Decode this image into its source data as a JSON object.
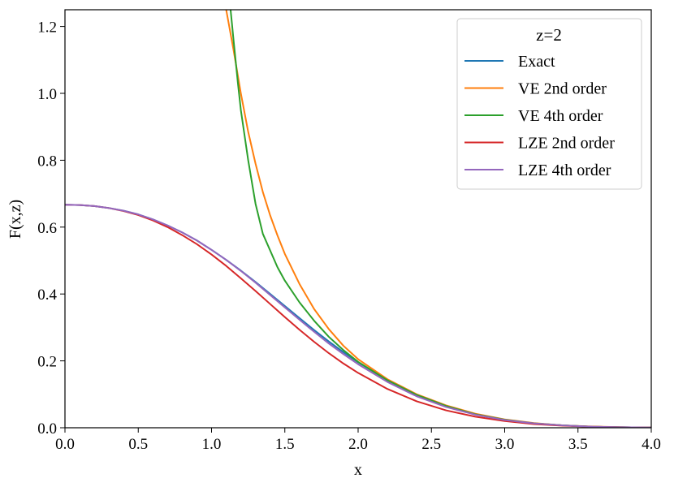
{
  "chart_data": {
    "type": "line",
    "title": "",
    "xlabel": "x",
    "ylabel": "F(x,z)",
    "xlim": [
      0.0,
      4.0
    ],
    "ylim": [
      0.0,
      1.25
    ],
    "xticks": [
      0.0,
      0.5,
      1.0,
      1.5,
      2.0,
      2.5,
      3.0,
      3.5,
      4.0
    ],
    "xtick_labels": [
      "0.0",
      "0.5",
      "1.0",
      "1.5",
      "2.0",
      "2.5",
      "3.0",
      "3.5",
      "4.0"
    ],
    "yticks": [
      0.0,
      0.2,
      0.4,
      0.6,
      0.8,
      1.0,
      1.2
    ],
    "ytick_labels": [
      "0.0",
      "0.2",
      "0.4",
      "0.6",
      "0.8",
      "1.0",
      "1.2"
    ],
    "grid": false,
    "legend": {
      "title": "z=2",
      "position": "top-right"
    },
    "series": [
      {
        "name": "Exact",
        "color": "#1f77b4",
        "x": [
          0.0,
          0.1,
          0.2,
          0.3,
          0.4,
          0.5,
          0.6,
          0.7,
          0.8,
          0.9,
          1.0,
          1.1,
          1.2,
          1.3,
          1.4,
          1.5,
          1.6,
          1.7,
          1.8,
          1.9,
          2.0,
          2.2,
          2.4,
          2.6,
          2.8,
          3.0,
          3.2,
          3.4,
          3.6,
          3.8,
          4.0
        ],
        "y": [
          0.667,
          0.666,
          0.663,
          0.657,
          0.649,
          0.638,
          0.623,
          0.605,
          0.584,
          0.56,
          0.532,
          0.502,
          0.47,
          0.436,
          0.4,
          0.364,
          0.328,
          0.292,
          0.258,
          0.226,
          0.196,
          0.142,
          0.098,
          0.065,
          0.04,
          0.024,
          0.013,
          0.007,
          0.003,
          0.0015,
          0.0007
        ]
      },
      {
        "name": "VE 2nd order",
        "color": "#ff7f0e",
        "x": [
          1.1,
          1.15,
          1.2,
          1.25,
          1.3,
          1.35,
          1.4,
          1.45,
          1.5,
          1.6,
          1.7,
          1.8,
          1.9,
          2.0,
          2.2,
          2.4,
          2.6,
          2.8,
          3.0,
          3.2,
          3.4,
          3.6,
          3.8,
          4.0
        ],
        "y": [
          1.25,
          1.13,
          1.0,
          0.885,
          0.79,
          0.705,
          0.635,
          0.575,
          0.52,
          0.43,
          0.355,
          0.295,
          0.245,
          0.205,
          0.145,
          0.1,
          0.067,
          0.042,
          0.025,
          0.014,
          0.007,
          0.0035,
          0.0016,
          0.0007
        ]
      },
      {
        "name": "VE 4th order",
        "color": "#2ca02c",
        "x": [
          1.13,
          1.15,
          1.18,
          1.2,
          1.25,
          1.3,
          1.35,
          1.4,
          1.45,
          1.5,
          1.6,
          1.7,
          1.8,
          1.9,
          2.0,
          2.2,
          2.4,
          2.6,
          2.8,
          3.0,
          3.2,
          3.4,
          3.6,
          3.8,
          4.0
        ],
        "y": [
          1.25,
          1.16,
          1.03,
          0.95,
          0.8,
          0.67,
          0.58,
          0.53,
          0.48,
          0.44,
          0.375,
          0.32,
          0.272,
          0.232,
          0.197,
          0.142,
          0.098,
          0.065,
          0.04,
          0.024,
          0.013,
          0.007,
          0.003,
          0.0015,
          0.0007
        ]
      },
      {
        "name": "LZE 2nd order",
        "color": "#d62728",
        "x": [
          0.0,
          0.1,
          0.2,
          0.3,
          0.4,
          0.5,
          0.6,
          0.7,
          0.8,
          0.9,
          1.0,
          1.1,
          1.2,
          1.3,
          1.4,
          1.5,
          1.6,
          1.7,
          1.8,
          1.9,
          2.0,
          2.2,
          2.4,
          2.6,
          2.8,
          3.0,
          3.2,
          3.4,
          3.6,
          3.8,
          4.0
        ],
        "y": [
          0.667,
          0.666,
          0.663,
          0.657,
          0.648,
          0.636,
          0.62,
          0.6,
          0.576,
          0.549,
          0.518,
          0.484,
          0.447,
          0.409,
          0.37,
          0.331,
          0.293,
          0.257,
          0.223,
          0.192,
          0.164,
          0.116,
          0.079,
          0.052,
          0.033,
          0.02,
          0.011,
          0.006,
          0.003,
          0.0014,
          0.0006
        ]
      },
      {
        "name": "LZE 4th order",
        "color": "#9467bd",
        "x": [
          0.0,
          0.1,
          0.2,
          0.3,
          0.4,
          0.5,
          0.6,
          0.7,
          0.8,
          0.9,
          1.0,
          1.1,
          1.2,
          1.3,
          1.4,
          1.5,
          1.6,
          1.7,
          1.8,
          1.9,
          2.0,
          2.2,
          2.4,
          2.6,
          2.8,
          3.0,
          3.2,
          3.4,
          3.6,
          3.8,
          4.0
        ],
        "y": [
          0.667,
          0.666,
          0.663,
          0.657,
          0.649,
          0.638,
          0.623,
          0.605,
          0.584,
          0.56,
          0.532,
          0.502,
          0.469,
          0.434,
          0.397,
          0.36,
          0.323,
          0.287,
          0.252,
          0.22,
          0.19,
          0.137,
          0.094,
          0.062,
          0.039,
          0.023,
          0.013,
          0.007,
          0.003,
          0.0015,
          0.0007
        ]
      }
    ]
  }
}
